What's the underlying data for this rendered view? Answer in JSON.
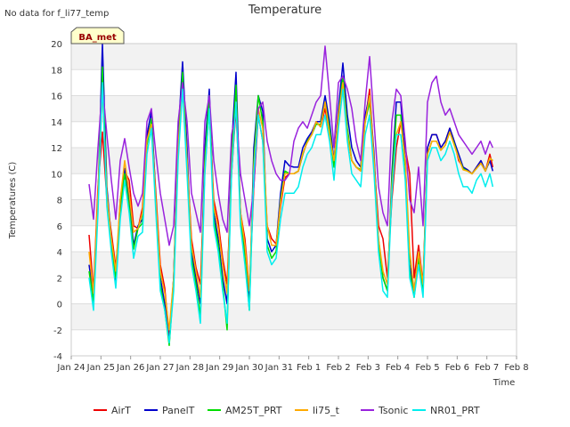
{
  "chart_data": {
    "type": "line",
    "title": "Temperature",
    "corner_note": "No data for f_li77_temp",
    "site_label": "BA_met",
    "xlabel": "Time",
    "ylabel": "Temperatures (C)",
    "ylim": [
      -4,
      20
    ],
    "yticks": [
      -4,
      -2,
      0,
      2,
      4,
      6,
      8,
      10,
      12,
      14,
      16,
      18,
      20
    ],
    "xlim": [
      0,
      15
    ],
    "x_unit": "days since Jan 24",
    "xticks": [
      {
        "v": 0,
        "label": "Jan 24"
      },
      {
        "v": 1,
        "label": "Jan 25"
      },
      {
        "v": 2,
        "label": "Jan 26"
      },
      {
        "v": 3,
        "label": "Jan 27"
      },
      {
        "v": 4,
        "label": "Jan 28"
      },
      {
        "v": 5,
        "label": "Jan 29"
      },
      {
        "v": 6,
        "label": "Jan 30"
      },
      {
        "v": 7,
        "label": "Jan 31"
      },
      {
        "v": 8,
        "label": "Feb 1"
      },
      {
        "v": 9,
        "label": "Feb 2"
      },
      {
        "v": 10,
        "label": "Feb 3"
      },
      {
        "v": 11,
        "label": "Feb 4"
      },
      {
        "v": 12,
        "label": "Feb 5"
      },
      {
        "v": 13,
        "label": "Feb 6"
      },
      {
        "v": 14,
        "label": "Feb 7"
      },
      {
        "v": 15,
        "label": "Feb 8"
      }
    ],
    "grid": true,
    "legend_position": "bottom",
    "series": [
      {
        "name": "AirT",
        "color": "#ee0000",
        "x": [
          0.6,
          0.75,
          0.9,
          1.05,
          1.2,
          1.35,
          1.5,
          1.65,
          1.8,
          1.95,
          2.1,
          2.25,
          2.4,
          2.55,
          2.7,
          2.85,
          3.0,
          3.15,
          3.3,
          3.45,
          3.6,
          3.75,
          3.9,
          4.05,
          4.2,
          4.35,
          4.5,
          4.65,
          4.8,
          4.95,
          5.1,
          5.25,
          5.4,
          5.55,
          5.7,
          5.85,
          6.0,
          6.15,
          6.3,
          6.45,
          6.6,
          6.75,
          6.9,
          7.05,
          7.2,
          7.35,
          7.5,
          7.65,
          7.8,
          7.95,
          8.1,
          8.25,
          8.4,
          8.55,
          8.7,
          8.85,
          9.0,
          9.15,
          9.3,
          9.45,
          9.6,
          9.75,
          9.9,
          10.05,
          10.2,
          10.35,
          10.5,
          10.65,
          10.8,
          10.95,
          11.1,
          11.25,
          11.4,
          11.55,
          11.7,
          11.85,
          12.0,
          12.15,
          12.3,
          12.45,
          12.6,
          12.75,
          12.9,
          13.05,
          13.2,
          13.35,
          13.5,
          13.65,
          13.8,
          13.95,
          14.1,
          14.2
        ],
        "y": [
          5.3,
          1.0,
          9.0,
          13.2,
          8.0,
          5.5,
          2.8,
          7.0,
          10.2,
          9.5,
          6.0,
          5.8,
          7.4,
          12.8,
          14.0,
          8.5,
          3.0,
          1.2,
          -2.6,
          2.0,
          12.3,
          17.2,
          11.0,
          5.0,
          2.8,
          1.5,
          10.3,
          15.0,
          8.0,
          6.3,
          3.5,
          1.5,
          10.0,
          15.0,
          7.0,
          5.0,
          1.0,
          9.0,
          14.5,
          12.5,
          6.0,
          5.0,
          4.6,
          7.5,
          9.7,
          10.0,
          10.0,
          10.2,
          11.5,
          12.5,
          13.0,
          14.0,
          13.6,
          15.0,
          13.0,
          11.0,
          14.0,
          17.0,
          13.0,
          11.0,
          10.5,
          10.2,
          14.0,
          16.5,
          11.0,
          6.0,
          5.0,
          2.0,
          8.0,
          12.0,
          14.0,
          12.0,
          10.0,
          2.0,
          4.5,
          1.5,
          12.0,
          13.0,
          13.0,
          12.0,
          12.5,
          13.5,
          12.5,
          11.0,
          10.5,
          10.3,
          10.0,
          10.5,
          11.0,
          10.2,
          11.5,
          10.5
        ]
      },
      {
        "name": "PanelT",
        "color": "#0000cc",
        "x": [
          0.6,
          0.75,
          0.9,
          1.05,
          1.2,
          1.35,
          1.5,
          1.65,
          1.8,
          1.95,
          2.1,
          2.25,
          2.4,
          2.55,
          2.7,
          2.85,
          3.0,
          3.15,
          3.3,
          3.45,
          3.6,
          3.75,
          3.9,
          4.05,
          4.2,
          4.35,
          4.5,
          4.65,
          4.8,
          4.95,
          5.1,
          5.25,
          5.4,
          5.55,
          5.7,
          5.85,
          6.0,
          6.15,
          6.3,
          6.45,
          6.6,
          6.75,
          6.9,
          7.05,
          7.2,
          7.35,
          7.5,
          7.65,
          7.8,
          7.95,
          8.1,
          8.25,
          8.4,
          8.55,
          8.7,
          8.85,
          9.0,
          9.15,
          9.3,
          9.45,
          9.6,
          9.75,
          9.9,
          10.05,
          10.2,
          10.35,
          10.5,
          10.65,
          10.8,
          10.95,
          11.1,
          11.25,
          11.4,
          11.55,
          11.7,
          11.85,
          12.0,
          12.15,
          12.3,
          12.45,
          12.6,
          12.75,
          12.9,
          13.05,
          13.2,
          13.35,
          13.5,
          13.65,
          13.8,
          13.95,
          14.1,
          14.2
        ],
        "y": [
          3.0,
          0.5,
          8.0,
          20.0,
          9.0,
          5.0,
          1.8,
          8.0,
          10.4,
          8.0,
          4.5,
          6.0,
          6.5,
          13.0,
          14.8,
          8.0,
          2.0,
          0.0,
          -3.0,
          2.0,
          13.0,
          18.6,
          12.0,
          4.0,
          2.0,
          0.0,
          12.0,
          16.5,
          7.0,
          5.0,
          2.0,
          0.0,
          12.0,
          17.8,
          7.0,
          4.0,
          0.0,
          12.0,
          16.0,
          14.8,
          5.0,
          4.0,
          4.5,
          8.5,
          11.0,
          10.6,
          10.5,
          10.5,
          12.0,
          12.7,
          13.2,
          14.0,
          14.0,
          16.0,
          14.0,
          11.0,
          15.0,
          18.5,
          14.5,
          12.0,
          11.0,
          10.5,
          14.5,
          16.0,
          11.5,
          5.0,
          2.0,
          1.0,
          10.0,
          15.5,
          15.5,
          11.0,
          3.0,
          1.0,
          4.0,
          1.0,
          12.0,
          13.0,
          13.0,
          12.0,
          12.5,
          13.5,
          12.5,
          11.5,
          10.5,
          10.3,
          10.0,
          10.5,
          11.0,
          10.2,
          11.0,
          10.2
        ]
      },
      {
        "name": "AM25T_PRT",
        "color": "#00dd00",
        "x": [
          0.6,
          0.75,
          0.9,
          1.05,
          1.2,
          1.35,
          1.5,
          1.65,
          1.8,
          1.95,
          2.1,
          2.25,
          2.4,
          2.55,
          2.7,
          2.85,
          3.0,
          3.15,
          3.3,
          3.45,
          3.6,
          3.75,
          3.9,
          4.05,
          4.2,
          4.35,
          4.5,
          4.65,
          4.8,
          4.95,
          5.1,
          5.25,
          5.4,
          5.55,
          5.7,
          5.85,
          6.0,
          6.15,
          6.3,
          6.45,
          6.6,
          6.75,
          6.9,
          7.05,
          7.2,
          7.35,
          7.5,
          7.65,
          7.8,
          7.95,
          8.1,
          8.25,
          8.4,
          8.55,
          8.7,
          8.85,
          9.0,
          9.15,
          9.3,
          9.45,
          9.6,
          9.75,
          9.9,
          10.05,
          10.2,
          10.35,
          10.5,
          10.65,
          10.8,
          10.95,
          11.1,
          11.25,
          11.4,
          11.55,
          11.7,
          11.85,
          12.0,
          12.15,
          12.3,
          12.45,
          12.6,
          12.75,
          12.9,
          13.05,
          13.2,
          13.35,
          13.5,
          13.65,
          13.8,
          13.95,
          14.1,
          14.2
        ],
        "y": [
          2.5,
          0.2,
          8.0,
          18.2,
          8.5,
          4.5,
          2.0,
          7.5,
          10.0,
          7.5,
          4.2,
          5.8,
          6.2,
          12.2,
          14.2,
          7.5,
          1.5,
          -0.5,
          -3.2,
          1.5,
          12.0,
          17.8,
          11.0,
          3.5,
          1.5,
          -1.0,
          11.0,
          16.0,
          6.5,
          4.5,
          1.5,
          -2.0,
          11.0,
          16.8,
          6.5,
          3.5,
          -0.5,
          11.0,
          16.0,
          14.0,
          4.5,
          3.5,
          4.0,
          8.0,
          10.2,
          10.0,
          10.0,
          10.2,
          11.5,
          12.5,
          13.0,
          13.8,
          13.8,
          15.5,
          13.5,
          10.5,
          14.5,
          17.5,
          13.5,
          11.0,
          10.5,
          10.3,
          14.0,
          15.5,
          11.0,
          4.5,
          2.0,
          1.0,
          9.5,
          14.5,
          14.5,
          10.5,
          2.5,
          0.5,
          3.5,
          1.0,
          11.5,
          12.5,
          12.5,
          11.8,
          12.2,
          13.2,
          12.3,
          11.2,
          10.4,
          10.2,
          10.0,
          10.4,
          10.8,
          10.2,
          11.2,
          11.0
        ]
      },
      {
        "name": "li75_t",
        "color": "#ffaa00",
        "x": [
          0.6,
          0.75,
          0.9,
          1.05,
          1.2,
          1.35,
          1.5,
          1.65,
          1.8,
          1.95,
          2.1,
          2.25,
          2.4,
          2.55,
          2.7,
          2.85,
          3.0,
          3.15,
          3.3,
          3.45,
          3.6,
          3.75,
          3.9,
          4.05,
          4.2,
          4.35,
          4.5,
          4.65,
          4.8,
          4.95,
          5.1,
          5.25,
          5.4,
          5.55,
          5.7,
          5.85,
          6.0,
          6.15,
          6.3,
          6.45,
          6.6,
          6.75,
          6.9,
          7.05,
          7.2,
          7.35,
          7.5,
          7.65,
          7.8,
          7.95,
          8.1,
          8.25,
          8.4,
          8.55,
          8.7,
          8.85,
          9.0,
          9.15,
          9.3,
          9.45,
          9.6,
          9.75,
          9.9,
          10.05,
          10.2,
          10.35,
          10.5,
          10.65,
          10.8,
          10.95,
          11.1,
          11.25,
          11.4,
          11.55,
          11.7,
          11.85,
          12.0,
          12.15,
          12.3,
          12.45,
          12.6,
          12.75,
          12.9,
          13.05,
          13.2,
          13.35,
          13.5,
          13.65,
          13.8,
          13.95,
          14.1,
          14.2
        ],
        "y": [
          4.0,
          0.8,
          8.5,
          16.5,
          8.5,
          5.0,
          2.5,
          8.0,
          11.0,
          8.5,
          5.5,
          5.8,
          7.0,
          12.6,
          13.8,
          8.0,
          2.5,
          0.8,
          -2.0,
          2.0,
          12.0,
          16.8,
          11.0,
          4.5,
          2.5,
          0.5,
          10.5,
          14.8,
          7.5,
          5.8,
          3.0,
          0.8,
          10.5,
          15.5,
          7.0,
          4.5,
          1.0,
          10.5,
          15.0,
          13.5,
          6.0,
          4.5,
          4.5,
          7.8,
          10.0,
          10.0,
          10.0,
          10.2,
          11.6,
          12.4,
          13.0,
          14.0,
          13.6,
          15.5,
          13.0,
          11.0,
          14.5,
          17.0,
          13.0,
          11.0,
          10.5,
          10.2,
          14.0,
          16.0,
          11.0,
          5.0,
          2.5,
          1.5,
          9.0,
          13.0,
          14.0,
          11.0,
          4.0,
          1.0,
          4.0,
          1.5,
          11.5,
          12.5,
          12.5,
          11.8,
          12.2,
          13.2,
          12.2,
          11.2,
          10.3,
          10.2,
          10.0,
          10.4,
          10.8,
          10.2,
          11.2,
          11.0
        ]
      },
      {
        "name": "Tsonic",
        "color": "#9922dd",
        "x": [
          0.6,
          0.75,
          0.9,
          1.05,
          1.2,
          1.35,
          1.5,
          1.65,
          1.8,
          1.95,
          2.1,
          2.25,
          2.4,
          2.55,
          2.7,
          2.85,
          3.0,
          3.15,
          3.3,
          3.45,
          3.6,
          3.75,
          3.9,
          4.05,
          4.2,
          4.35,
          4.5,
          4.65,
          4.8,
          4.95,
          5.1,
          5.25,
          5.4,
          5.55,
          5.7,
          5.85,
          6.0,
          6.15,
          6.3,
          6.45,
          6.6,
          6.75,
          6.9,
          7.05,
          7.2,
          7.35,
          7.5,
          7.65,
          7.8,
          7.95,
          8.1,
          8.25,
          8.4,
          8.55,
          8.7,
          8.85,
          9.0,
          9.15,
          9.3,
          9.45,
          9.6,
          9.75,
          9.9,
          10.05,
          10.2,
          10.35,
          10.5,
          10.65,
          10.8,
          10.95,
          11.1,
          11.25,
          11.4,
          11.55,
          11.7,
          11.85,
          12.0,
          12.15,
          12.3,
          12.45,
          12.6,
          12.75,
          12.9,
          13.05,
          13.2,
          13.35,
          13.5,
          13.65,
          13.8,
          13.95,
          14.1,
          14.2
        ],
        "y": [
          9.2,
          6.5,
          12.0,
          16.8,
          13.0,
          9.5,
          6.5,
          11.0,
          12.7,
          10.5,
          8.5,
          7.5,
          8.5,
          14.0,
          15.0,
          11.5,
          8.5,
          6.5,
          4.5,
          6.0,
          14.0,
          17.0,
          14.0,
          8.5,
          7.0,
          5.5,
          14.0,
          16.0,
          11.0,
          8.5,
          6.5,
          5.5,
          13.0,
          14.8,
          10.0,
          8.0,
          6.0,
          9.0,
          15.0,
          15.5,
          12.5,
          11.0,
          10.0,
          9.5,
          9.5,
          10.0,
          12.5,
          13.5,
          14.0,
          13.5,
          14.5,
          15.5,
          16.0,
          19.8,
          16.0,
          12.0,
          17.0,
          17.5,
          16.5,
          15.0,
          12.5,
          11.0,
          15.5,
          19.0,
          14.0,
          9.0,
          7.0,
          6.0,
          14.0,
          16.5,
          16.0,
          12.5,
          8.0,
          7.0,
          10.5,
          6.0,
          15.5,
          17.0,
          17.5,
          15.5,
          14.5,
          15.0,
          14.0,
          13.0,
          12.5,
          12.0,
          11.5,
          12.0,
          12.5,
          11.5,
          12.5,
          12.0
        ]
      },
      {
        "name": "NR01_PRT",
        "color": "#00eeee",
        "x": [
          0.6,
          0.75,
          0.9,
          1.05,
          1.2,
          1.35,
          1.5,
          1.65,
          1.8,
          1.95,
          2.1,
          2.25,
          2.4,
          2.55,
          2.7,
          2.85,
          3.0,
          3.15,
          3.3,
          3.45,
          3.6,
          3.75,
          3.9,
          4.05,
          4.2,
          4.35,
          4.5,
          4.65,
          4.8,
          4.95,
          5.1,
          5.25,
          5.4,
          5.55,
          5.7,
          5.85,
          6.0,
          6.15,
          6.3,
          6.45,
          6.6,
          6.75,
          6.9,
          7.05,
          7.2,
          7.35,
          7.5,
          7.65,
          7.8,
          7.95,
          8.1,
          8.25,
          8.4,
          8.55,
          8.7,
          8.85,
          9.0,
          9.15,
          9.3,
          9.45,
          9.6,
          9.75,
          9.9,
          10.05,
          10.2,
          10.35,
          10.5,
          10.65,
          10.8,
          10.95,
          11.1,
          11.25,
          11.4,
          11.55,
          11.7,
          11.85,
          12.0,
          12.15,
          12.3,
          12.45,
          12.6,
          12.75,
          12.9,
          13.05,
          13.2,
          13.35,
          13.5,
          13.65,
          13.8,
          13.95,
          14.1,
          14.2
        ],
        "y": [
          2.0,
          -0.5,
          7.0,
          17.0,
          7.5,
          4.0,
          1.2,
          6.5,
          9.5,
          7.0,
          3.5,
          5.2,
          5.5,
          11.5,
          13.5,
          7.0,
          1.0,
          -0.5,
          -3.0,
          1.0,
          11.0,
          16.5,
          10.0,
          3.0,
          1.0,
          -1.5,
          10.0,
          15.0,
          6.0,
          4.0,
          1.0,
          -1.5,
          10.0,
          15.5,
          6.0,
          3.0,
          -0.5,
          10.0,
          14.5,
          12.5,
          4.0,
          3.0,
          3.5,
          6.5,
          8.5,
          8.5,
          8.5,
          9.0,
          10.5,
          11.5,
          12.0,
          13.0,
          13.0,
          14.5,
          12.5,
          9.5,
          13.5,
          16.5,
          12.5,
          10.0,
          9.5,
          9.0,
          13.0,
          14.5,
          10.0,
          4.0,
          1.0,
          0.5,
          8.5,
          13.0,
          13.0,
          9.5,
          2.0,
          0.5,
          3.0,
          0.5,
          11.0,
          12.0,
          12.0,
          11.0,
          11.5,
          12.5,
          11.5,
          10.0,
          9.0,
          9.0,
          8.5,
          9.5,
          10.0,
          9.0,
          10.0,
          9.0
        ]
      }
    ]
  }
}
